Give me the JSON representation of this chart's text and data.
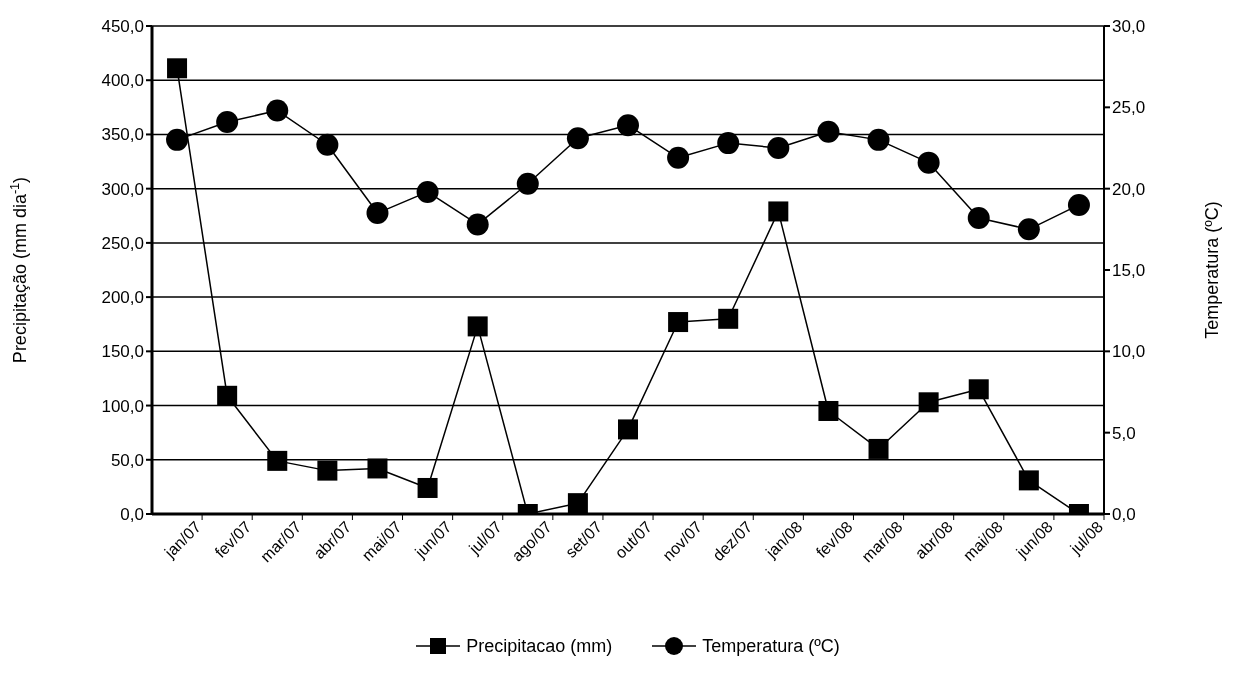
{
  "chart_data": {
    "type": "line",
    "ylabel": "Precipitação (mm dia$^{-1}$)",
    "y2label": "Temperatura (ºC)",
    "categories": [
      "jan/07",
      "fev/07",
      "mar/07",
      "abr/07",
      "mai/07",
      "jun/07",
      "jul/07",
      "ago/07",
      "set/07",
      "out/07",
      "nov/07",
      "dez/07",
      "jan/08",
      "fev/08",
      "mar/08",
      "abr/08",
      "mai/08",
      "jun/08",
      "jul/08"
    ],
    "series": [
      {
        "name": "Precipitacao (mm)",
        "color": "#000000",
        "marker": "square",
        "values": [
          411,
          109,
          49,
          40,
          42,
          24,
          173,
          0,
          10,
          78,
          177,
          180,
          279,
          95,
          60,
          103,
          115,
          31,
          0
        ]
      },
      {
        "name": "Temperatura (ºC)",
        "color": "#000000",
        "marker": "circle",
        "axis": "y2",
        "values": [
          23.0,
          24.1,
          24.8,
          22.7,
          18.5,
          19.8,
          17.8,
          20.3,
          23.1,
          23.9,
          21.9,
          22.8,
          22.5,
          23.5,
          23.0,
          21.6,
          18.2,
          17.5,
          19.0
        ]
      }
    ],
    "ylim": [
      0,
      450
    ],
    "yticks": [
      {
        "value": 0,
        "label": "0,0"
      },
      {
        "value": 50,
        "label": "50,0"
      },
      {
        "value": 100,
        "label": "100,0"
      },
      {
        "value": 150,
        "label": "150,0"
      },
      {
        "value": 200,
        "label": "200,0"
      },
      {
        "value": 250,
        "label": "250,0"
      },
      {
        "value": 300,
        "label": "300,0"
      },
      {
        "value": 350,
        "label": "350,0"
      },
      {
        "value": 400,
        "label": "400,0"
      },
      {
        "value": 450,
        "label": "450,0"
      }
    ],
    "y2lim": [
      0,
      30
    ],
    "y2ticks": [
      {
        "value": 0,
        "label": "0,0"
      },
      {
        "value": 5,
        "label": "5,0"
      },
      {
        "value": 10,
        "label": "10,0"
      },
      {
        "value": 15,
        "label": "15,0"
      },
      {
        "value": 20,
        "label": "20,0"
      },
      {
        "value": 25,
        "label": "25,0"
      },
      {
        "value": 30,
        "label": "30,0"
      }
    ],
    "grid": "y",
    "legend": "bottom",
    "line_style": "solid"
  }
}
